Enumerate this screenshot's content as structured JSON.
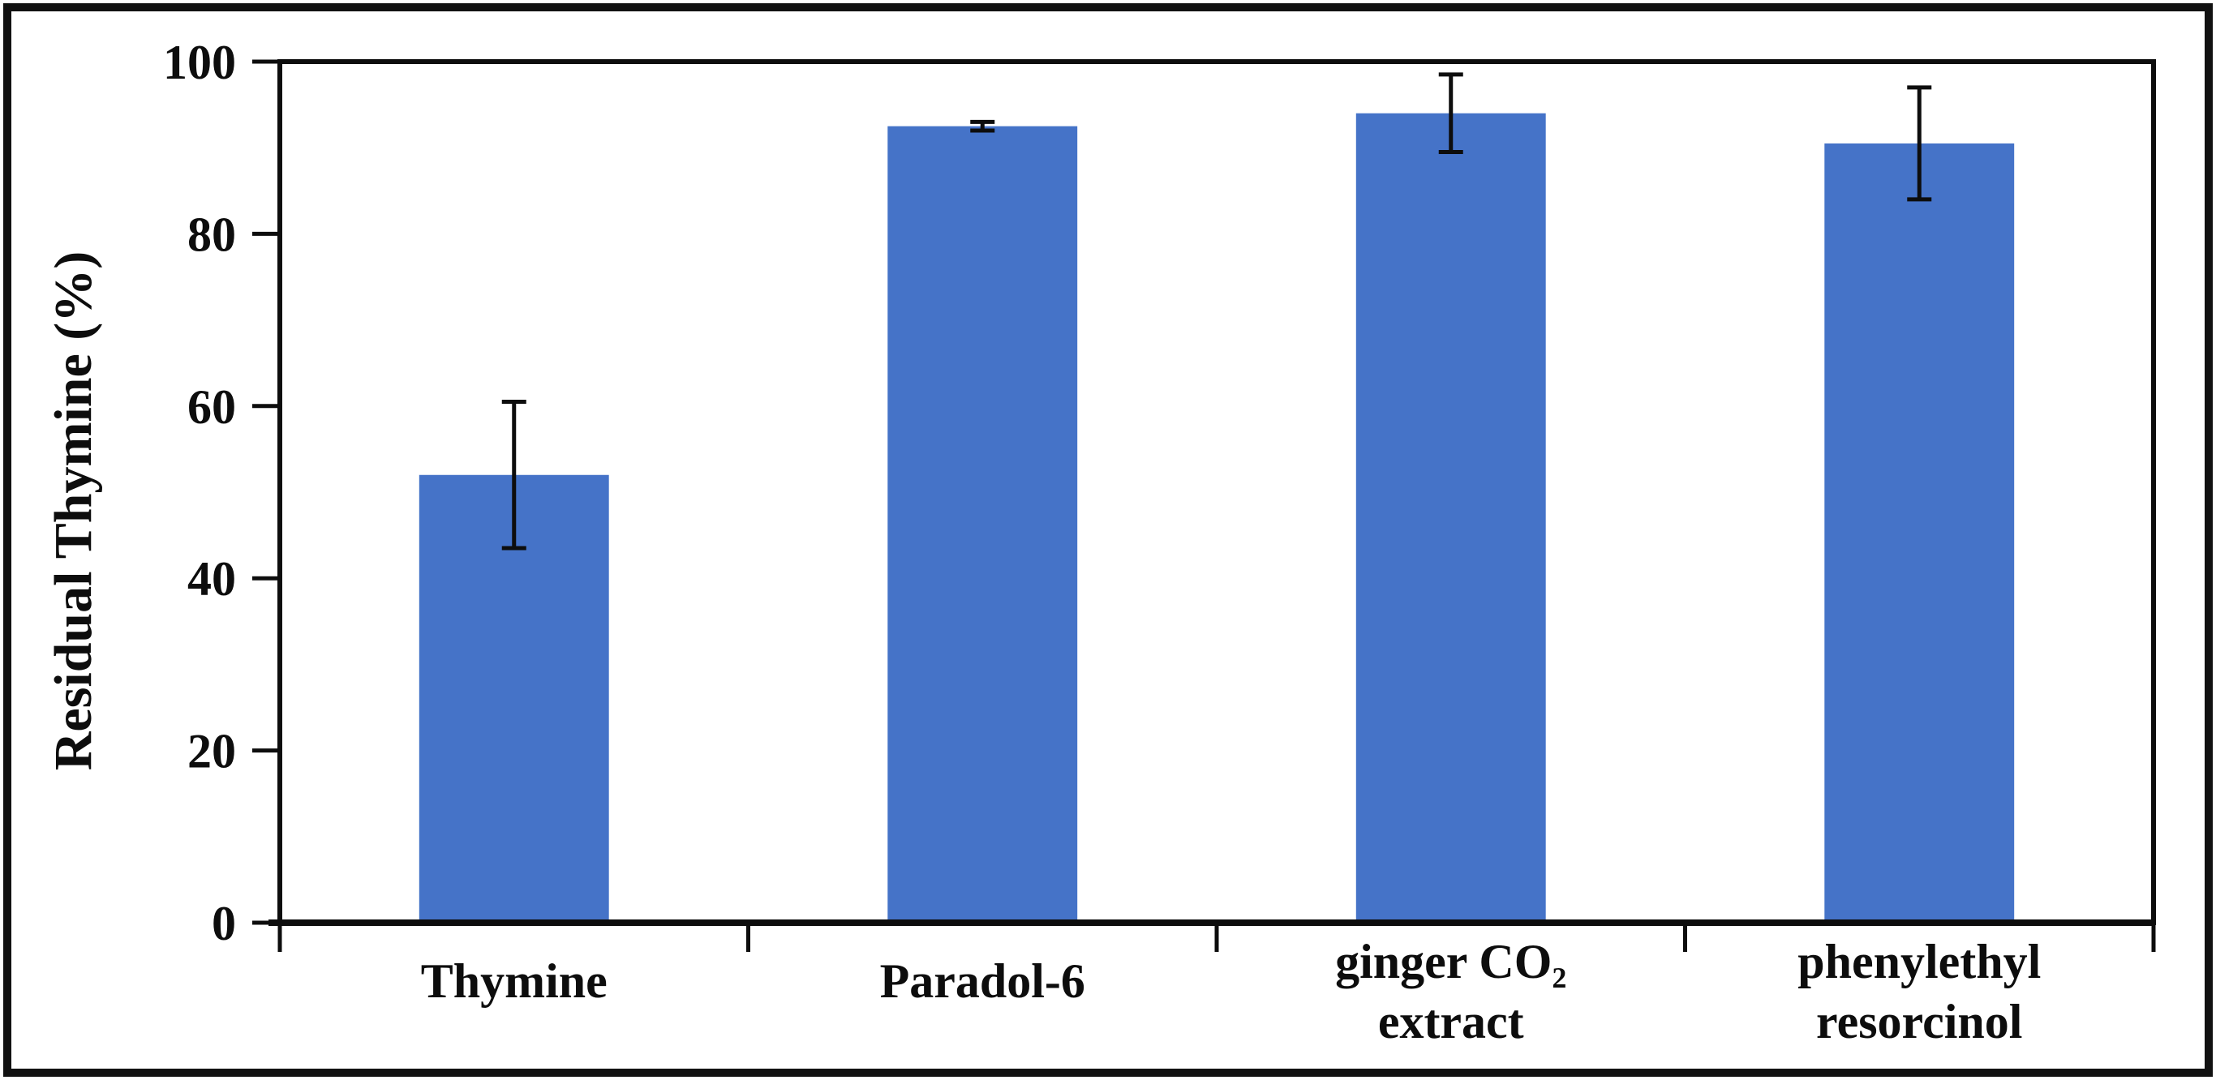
{
  "figure": {
    "background": "#ffffff",
    "border_color": "#111111",
    "axis_color": "#0d0d0d"
  },
  "chart_data": {
    "type": "bar",
    "title": "",
    "xlabel": "",
    "ylabel": "Residual Thymine (%)",
    "ylim": [
      0,
      100
    ],
    "yticks": [
      0,
      20,
      40,
      60,
      80,
      100
    ],
    "grid": false,
    "legend_position": "none",
    "bar_color": "#4573C8",
    "error_bar_color": "#0d0d0d",
    "categories": [
      "Thymine",
      "Paradol-6",
      "ginger CO₂ extract",
      "phenylethyl resorcinol"
    ],
    "category_lines": [
      [
        "Thymine"
      ],
      [
        "Paradol-6"
      ],
      [
        "ginger CO₂",
        "extract"
      ],
      [
        "phenylethyl",
        "resorcinol"
      ]
    ],
    "values": [
      52,
      92.5,
      94,
      90.5
    ],
    "errors": [
      8.5,
      0.5,
      4.5,
      6.5
    ]
  }
}
